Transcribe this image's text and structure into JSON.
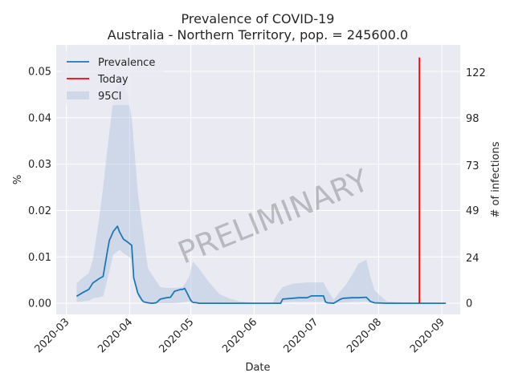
{
  "chart_data": {
    "type": "line",
    "title": "Prevalence of COVID-19",
    "subtitle": "Australia - Northern Territory, pop. = 245600.0",
    "xlabel": "Date",
    "ylabel": "%",
    "ylabel_right": "# of infections",
    "watermark": "PRELIMINARY",
    "grid": true,
    "legend_position": "upper-left",
    "x_range": [
      "2020-02-25",
      "2020-09-10"
    ],
    "ylim": [
      -0.0024,
      0.0557
    ],
    "x_ticks": [
      "2020-03",
      "2020-04",
      "2020-05",
      "2020-06",
      "2020-07",
      "2020-08",
      "2020-09"
    ],
    "y_ticks": [
      0.0,
      0.01,
      0.02,
      0.03,
      0.04,
      0.05
    ],
    "y_tick_labels": [
      "0.00",
      "0.01",
      "0.02",
      "0.03",
      "0.04",
      "0.05"
    ],
    "y_right_ticks": [
      0,
      24,
      49,
      73,
      98,
      122
    ],
    "y_right_tick_values": [
      0.0,
      0.0098,
      0.02,
      0.0297,
      0.0399,
      0.0497
    ],
    "today": "2020-08-21",
    "today_range": [
      0.0,
      0.053
    ],
    "series": [
      {
        "name": "Prevalence",
        "color": "#1f77b4",
        "x": [
          "2020-03-06",
          "2020-03-09",
          "2020-03-12",
          "2020-03-14",
          "2020-03-17",
          "2020-03-19",
          "2020-03-21",
          "2020-03-22",
          "2020-03-24",
          "2020-03-26",
          "2020-03-27",
          "2020-03-29",
          "2020-03-31",
          "2020-04-02",
          "2020-04-03",
          "2020-04-05",
          "2020-04-07",
          "2020-04-08",
          "2020-04-10",
          "2020-04-12",
          "2020-04-14",
          "2020-04-16",
          "2020-04-19",
          "2020-04-21",
          "2020-04-23",
          "2020-04-26",
          "2020-04-27",
          "2020-04-28",
          "2020-05-01",
          "2020-05-02",
          "2020-05-04",
          "2020-05-05",
          "2020-05-07",
          "2020-05-10",
          "2020-05-15",
          "2020-05-20",
          "2020-06-01",
          "2020-06-10",
          "2020-06-12",
          "2020-06-14",
          "2020-06-15",
          "2020-06-20",
          "2020-06-23",
          "2020-06-27",
          "2020-06-29",
          "2020-07-01",
          "2020-07-05",
          "2020-07-06",
          "2020-07-07",
          "2020-07-10",
          "2020-07-13",
          "2020-07-14",
          "2020-07-15",
          "2020-07-19",
          "2020-07-20",
          "2020-07-22",
          "2020-07-26",
          "2020-07-28",
          "2020-07-30",
          "2020-08-05",
          "2020-08-21",
          "2020-09-03"
        ],
        "values": [
          0.0015,
          0.0023,
          0.003,
          0.0044,
          0.0053,
          0.0058,
          0.011,
          0.0135,
          0.0155,
          0.0166,
          0.0154,
          0.0138,
          0.0132,
          0.0125,
          0.0055,
          0.0022,
          0.0007,
          0.0003,
          0.0001,
          0.0,
          0.0001,
          0.0009,
          0.0012,
          0.0013,
          0.0026,
          0.003,
          0.003,
          0.0032,
          0.0006,
          0.0002,
          0.0001,
          0.0,
          0.0,
          0.0,
          0.0,
          0.0,
          0.0,
          0.0,
          0.0,
          0.0,
          0.0009,
          0.0011,
          0.0012,
          0.0012,
          0.0016,
          0.0016,
          0.0016,
          0.0003,
          0.0001,
          0.0,
          0.0008,
          0.001,
          0.0011,
          0.0012,
          0.0012,
          0.0012,
          0.0013,
          0.0004,
          0.0001,
          0.0,
          0.0,
          0.0
        ]
      },
      {
        "name": "Today",
        "color": "#ff0000"
      },
      {
        "name": "95CI",
        "color": "#b0c4de",
        "x": [
          "2020-03-06",
          "2020-03-09",
          "2020-03-12",
          "2020-03-14",
          "2020-03-17",
          "2020-03-19",
          "2020-03-21",
          "2020-03-24",
          "2020-03-27",
          "2020-03-29",
          "2020-03-31",
          "2020-04-02",
          "2020-04-05",
          "2020-04-07",
          "2020-04-10",
          "2020-04-14",
          "2020-04-16",
          "2020-04-19",
          "2020-04-23",
          "2020-04-27",
          "2020-04-30",
          "2020-05-02",
          "2020-05-05",
          "2020-05-10",
          "2020-05-15",
          "2020-05-20",
          "2020-05-25",
          "2020-06-01",
          "2020-06-10",
          "2020-06-12",
          "2020-06-15",
          "2020-06-20",
          "2020-06-27",
          "2020-07-05",
          "2020-07-07",
          "2020-07-10",
          "2020-07-13",
          "2020-07-16",
          "2020-07-20",
          "2020-07-22",
          "2020-07-26",
          "2020-07-28",
          "2020-07-30",
          "2020-08-05",
          "2020-08-21",
          "2020-09-03"
        ],
        "lower": [
          0.0003,
          0.0004,
          0.0006,
          0.001,
          0.0013,
          0.0015,
          0.005,
          0.0105,
          0.0115,
          0.0108,
          0.0102,
          0.0095,
          0.0015,
          0.0003,
          0.0,
          0.0,
          0.0,
          0.0,
          0.0,
          0.0002,
          0.0004,
          0.0001,
          0.0,
          0.0,
          0.0,
          0.0,
          0.0,
          0.0,
          0.0,
          0.0,
          0.0002,
          0.0003,
          0.0003,
          0.0003,
          0.0,
          0.0,
          0.0001,
          0.0002,
          0.0003,
          0.0003,
          0.0004,
          0.0001,
          0.0,
          0.0,
          0.0,
          0.0
        ],
        "upper": [
          0.0043,
          0.0055,
          0.0065,
          0.0095,
          0.018,
          0.025,
          0.033,
          0.044,
          0.048,
          0.0475,
          0.045,
          0.04,
          0.024,
          0.017,
          0.0075,
          0.0048,
          0.0035,
          0.0033,
          0.0033,
          0.0035,
          0.0055,
          0.009,
          0.0075,
          0.0045,
          0.002,
          0.001,
          0.0004,
          0.0001,
          0.0001,
          0.0018,
          0.0035,
          0.0042,
          0.0045,
          0.0045,
          0.0028,
          0.0008,
          0.0025,
          0.004,
          0.0068,
          0.0085,
          0.0094,
          0.0058,
          0.0028,
          0.0004,
          0.0,
          0.0
        ]
      }
    ]
  }
}
